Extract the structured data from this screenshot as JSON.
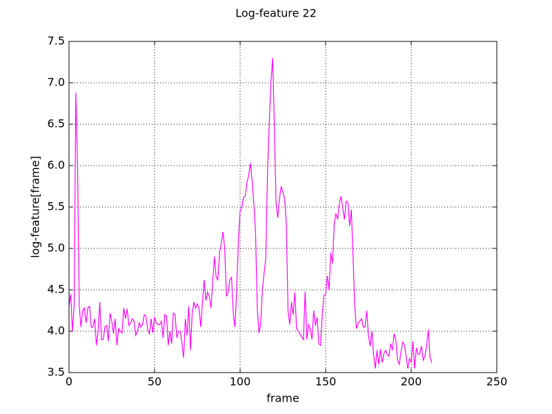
{
  "chart_data": {
    "type": "line",
    "title": "Log-feature 22",
    "xlabel": "frame",
    "ylabel": "log-feature[frame]",
    "color": "#ff00ff",
    "grid": true,
    "xlim": [
      0,
      250
    ],
    "xticks": [
      0,
      50,
      100,
      150,
      200,
      250
    ],
    "ylim": [
      3.5,
      7.5
    ],
    "yticks": [
      3.5,
      {
        "value": 4,
        "label": "4.0"
      },
      4.5,
      {
        "value": 5,
        "label": "5.0"
      },
      5.5,
      {
        "value": 6,
        "label": "6.0"
      },
      6.5,
      {
        "value": 7,
        "label": "7.0"
      },
      7.5
    ],
    "x": [
      0,
      1,
      2,
      3,
      4,
      5,
      6,
      7,
      8,
      9,
      10,
      11,
      12,
      13,
      14,
      15,
      16,
      17,
      18,
      19,
      20,
      21,
      22,
      23,
      24,
      25,
      26,
      27,
      28,
      29,
      30,
      31,
      32,
      33,
      34,
      35,
      36,
      37,
      38,
      39,
      40,
      41,
      42,
      43,
      44,
      45,
      46,
      47,
      48,
      49,
      50,
      51,
      52,
      53,
      54,
      55,
      56,
      57,
      58,
      59,
      60,
      61,
      62,
      63,
      64,
      65,
      66,
      67,
      68,
      69,
      70,
      71,
      72,
      73,
      74,
      75,
      76,
      77,
      78,
      79,
      80,
      81,
      82,
      83,
      84,
      85,
      86,
      87,
      88,
      89,
      90,
      91,
      92,
      93,
      94,
      95,
      96,
      97,
      98,
      99,
      100,
      101,
      102,
      103,
      104,
      105,
      106,
      107,
      108,
      109,
      110,
      111,
      112,
      113,
      114,
      115,
      116,
      117,
      118,
      119,
      120,
      121,
      122,
      123,
      124,
      125,
      126,
      127,
      128,
      129,
      130,
      131,
      132,
      133,
      134,
      135,
      136,
      137,
      138,
      139,
      140,
      141,
      142,
      143,
      144,
      145,
      146,
      147,
      148,
      149,
      150,
      151,
      152,
      153,
      154,
      155,
      156,
      157,
      158,
      159,
      160,
      161,
      162,
      163,
      164,
      165,
      166,
      167,
      168,
      169,
      170,
      171,
      172,
      173,
      174,
      175,
      176,
      177,
      178,
      179,
      180,
      181,
      182,
      183,
      184,
      185,
      186,
      187,
      188,
      189,
      190,
      191,
      192,
      193,
      194,
      195,
      196,
      197,
      198,
      199,
      200,
      201,
      202,
      203,
      204,
      205,
      206,
      207,
      208,
      209,
      210,
      211,
      212
    ],
    "values": [
      4.3,
      4.45,
      4.0,
      4.3,
      6.88,
      6.0,
      4.3,
      4.05,
      4.25,
      4.28,
      4.1,
      4.28,
      4.3,
      4.05,
      4.05,
      4.15,
      3.83,
      4.0,
      4.35,
      3.9,
      3.9,
      4.05,
      4.07,
      3.88,
      4.22,
      4.12,
      3.97,
      4.15,
      3.83,
      4.03,
      4.0,
      3.98,
      4.28,
      4.15,
      4.27,
      4.07,
      4.1,
      4.15,
      4.12,
      3.95,
      4.0,
      4.1,
      4.05,
      4.08,
      4.2,
      4.18,
      4.02,
      3.97,
      4.15,
      3.98,
      4.17,
      4.1,
      4.08,
      4.08,
      4.12,
      3.92,
      4.2,
      4.18,
      3.83,
      4.0,
      3.85,
      4.22,
      4.2,
      3.92,
      4.0,
      4.0,
      3.85,
      3.68,
      4.15,
      3.95,
      4.3,
      3.77,
      4.22,
      4.35,
      4.28,
      4.33,
      4.28,
      4.05,
      4.35,
      4.62,
      4.37,
      4.47,
      4.42,
      4.28,
      4.6,
      4.9,
      4.65,
      4.62,
      4.95,
      5.05,
      5.2,
      5.0,
      4.42,
      4.47,
      4.62,
      4.65,
      4.22,
      4.05,
      4.5,
      5.1,
      5.45,
      5.5,
      5.62,
      5.63,
      5.8,
      5.88,
      6.03,
      5.82,
      5.55,
      5.2,
      4.3,
      3.98,
      4.08,
      4.5,
      4.7,
      4.88,
      5.9,
      6.5,
      7.0,
      7.3,
      6.5,
      5.55,
      5.37,
      5.6,
      5.75,
      5.68,
      5.6,
      5.3,
      4.25,
      4.08,
      4.35,
      4.2,
      4.47,
      4.03,
      4.0,
      3.97,
      3.93,
      3.9,
      4.48,
      3.9,
      4.08,
      4.03,
      3.9,
      4.25,
      4.07,
      4.17,
      3.85,
      3.83,
      4.2,
      4.43,
      4.45,
      4.67,
      4.5,
      4.95,
      4.82,
      5.3,
      5.42,
      5.35,
      5.55,
      5.63,
      5.48,
      5.35,
      5.57,
      5.55,
      5.27,
      5.47,
      4.9,
      4.3,
      4.03,
      4.1,
      4.12,
      4.15,
      4.05,
      4.05,
      4.25,
      3.95,
      3.82,
      4.0,
      3.72,
      3.55,
      3.77,
      3.6,
      3.78,
      3.62,
      3.73,
      3.77,
      3.72,
      3.7,
      3.85,
      3.77,
      3.97,
      3.9,
      3.65,
      3.6,
      3.75,
      3.87,
      3.83,
      3.7,
      3.55,
      3.67,
      3.62,
      3.88,
      3.55,
      3.8,
      3.72,
      3.73,
      3.82,
      3.65,
      3.7,
      3.82,
      4.02,
      3.68,
      3.62
    ]
  }
}
